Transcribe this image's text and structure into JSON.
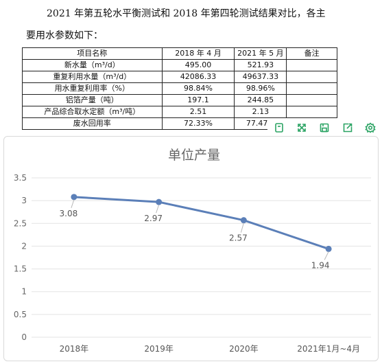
{
  "doc": {
    "para1": "2021 年第五轮水平衡测试和 2018 年第四轮测试结果对比，各主",
    "para2": "要用水参数如下："
  },
  "table": {
    "headers": [
      "项目名称",
      "2018 年 4 月",
      "2021 年 5 月",
      "备注"
    ],
    "rows": [
      [
        "新水量（m³/d）",
        "495.00",
        "521.93",
        ""
      ],
      [
        "重复利用水量（m³/d）",
        "42086.33",
        "49637.33",
        ""
      ],
      [
        "用水重复利用率（%）",
        "98.84%",
        "98.96%",
        ""
      ],
      [
        "铝箔产量（吨）",
        "197.1",
        "244.85",
        ""
      ],
      [
        "产品综合取水定额（m³/吨）",
        "2.51",
        "2.13",
        ""
      ],
      [
        "废水回用率",
        "72.33%",
        "77.47%",
        ""
      ]
    ]
  },
  "toolbar": {
    "icons": [
      "copy-icon",
      "expand-icon",
      "save-icon",
      "share-icon",
      "settings-icon"
    ],
    "color": "#2aa363"
  },
  "chart_data": {
    "type": "line",
    "title": "单位产量",
    "categories": [
      "2018年",
      "2019年",
      "2020年",
      "2021年1月~4月"
    ],
    "values": [
      3.08,
      2.97,
      2.57,
      1.94
    ],
    "data_labels": [
      "3.08",
      "2.97",
      "2.57",
      "1.94"
    ],
    "yticks": [
      "0",
      "0.5",
      "1",
      "1.5",
      "2",
      "2.5",
      "3",
      "3.5"
    ],
    "ylim": [
      0,
      3.5
    ],
    "grid": true,
    "legend": "none",
    "line_color": "#5b7fb8"
  }
}
